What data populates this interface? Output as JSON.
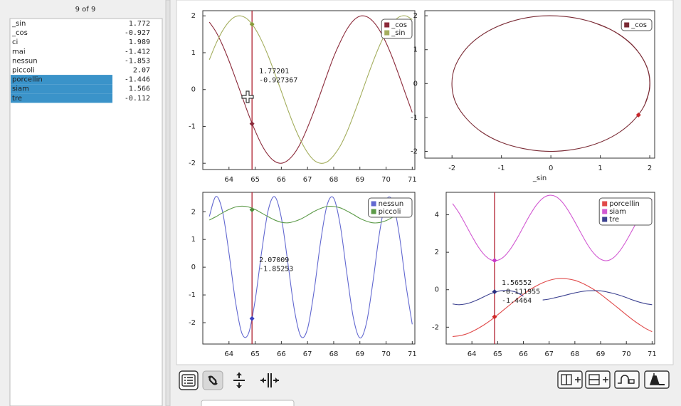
{
  "variable_list": {
    "header": "9 of 9",
    "rows": [
      {
        "name": "_sin",
        "value": "1.772",
        "selected": false
      },
      {
        "name": "_cos",
        "value": "-0.927",
        "selected": false
      },
      {
        "name": "ci",
        "value": "1.989",
        "selected": false
      },
      {
        "name": "mai",
        "value": "-1.412",
        "selected": false
      },
      {
        "name": "nessun",
        "value": "-1.853",
        "selected": false
      },
      {
        "name": "piccoli",
        "value": "2.07",
        "selected": false
      },
      {
        "name": "porcellin",
        "value": "-1.446",
        "selected": true
      },
      {
        "name": "siam",
        "value": "1.566",
        "selected": true
      },
      {
        "name": "tre",
        "value": "-0.112",
        "selected": true
      }
    ]
  },
  "chart_data": [
    {
      "type": "line",
      "x": [
        63.25,
        63.5,
        63.75,
        64,
        64.25,
        64.5,
        64.75,
        65,
        65.25,
        65.5,
        65.75,
        66,
        66.25,
        66.5,
        66.75,
        67,
        67.25,
        67.5,
        67.75,
        68,
        68.25,
        68.5,
        68.75,
        69,
        69.25,
        69.5,
        69.75,
        70,
        70.25,
        70.5,
        70.75,
        71
      ],
      "series": [
        {
          "name": "_cos",
          "color": "#8b2a3a",
          "values": [
            1.83,
            1.57,
            1.21,
            0.78,
            0.3,
            -0.19,
            -0.68,
            -1.12,
            -1.5,
            -1.78,
            -1.95,
            -2.0,
            -1.92,
            -1.73,
            -1.43,
            -1.03,
            -0.58,
            -0.09,
            0.41,
            0.89,
            1.29,
            1.63,
            1.87,
            1.99,
            1.98,
            1.85,
            1.61,
            1.27,
            0.85,
            0.37,
            -0.13,
            -0.62
          ]
        },
        {
          "name": "_sin",
          "color": "#a4ae5e",
          "values": [
            0.81,
            1.24,
            1.59,
            1.84,
            1.98,
            1.99,
            1.88,
            1.65,
            1.32,
            0.91,
            0.44,
            -0.05,
            -0.55,
            -1.01,
            -1.4,
            -1.71,
            -1.92,
            -2.0,
            -1.96,
            -1.79,
            -1.53,
            -1.16,
            -0.71,
            -0.23,
            0.27,
            0.75,
            1.19,
            1.55,
            1.81,
            1.97,
            2.0,
            1.9
          ]
        }
      ],
      "xlim": [
        63,
        71.1
      ],
      "ylim": [
        -2.17,
        2.14
      ],
      "xticks": [
        64,
        65,
        66,
        67,
        68,
        69,
        70,
        71
      ],
      "yticks": [
        -2,
        -1,
        0,
        1,
        2
      ],
      "cursor": {
        "x": 64.88,
        "values": [
          1.77201,
          -0.927367
        ],
        "colors": [
          "#8a9a3a",
          "#8b2a3a"
        ]
      }
    },
    {
      "type": "line",
      "x": [
        0.81,
        1.24,
        1.59,
        1.84,
        1.98,
        1.99,
        1.88,
        1.65,
        1.32,
        0.91,
        0.44,
        -0.05,
        -0.55,
        -1.01,
        -1.4,
        -1.71,
        -1.92,
        -2.0,
        -1.96,
        -1.79,
        -1.53,
        -1.16,
        -0.71,
        -0.23,
        0.27,
        0.75,
        1.19,
        1.55,
        1.81,
        1.97,
        2.0,
        1.9
      ],
      "series": [
        {
          "name": "_cos",
          "color": "#7a2a34",
          "values": [
            1.83,
            1.57,
            1.21,
            0.78,
            0.3,
            -0.19,
            -0.68,
            -1.12,
            -1.5,
            -1.78,
            -1.95,
            -2.0,
            -1.92,
            -1.73,
            -1.43,
            -1.03,
            -0.58,
            -0.09,
            0.41,
            0.89,
            1.29,
            1.63,
            1.87,
            1.99,
            1.98,
            1.85,
            1.61,
            1.27,
            0.85,
            0.37,
            -0.13,
            -0.62
          ]
        }
      ],
      "xlabel": "_sin",
      "xlim": [
        -2.55,
        2.1
      ],
      "ylim": [
        -2.2,
        2.15
      ],
      "xticks": [
        -2,
        -1,
        0,
        1,
        2
      ],
      "yticks": [
        -2,
        -1,
        0,
        1,
        2
      ],
      "marker": {
        "x": 1.772,
        "y": -0.927,
        "color": "#c8282d"
      }
    },
    {
      "type": "line",
      "x": [
        63.25,
        63.5,
        63.75,
        64,
        64.25,
        64.5,
        64.75,
        65,
        65.25,
        65.5,
        65.75,
        66,
        66.25,
        66.5,
        66.75,
        67,
        67.25,
        67.5,
        67.75,
        68,
        68.25,
        68.5,
        68.75,
        69,
        69.25,
        69.5,
        69.75,
        70,
        70.25,
        70.5,
        70.75,
        71
      ],
      "series": [
        {
          "name": "nessun",
          "color": "#6268d0",
          "values": [
            1.83,
            2.55,
            2.02,
            0.51,
            -1.25,
            -2.4,
            -2.38,
            -1.19,
            0.57,
            2.06,
            2.54,
            1.78,
            0.15,
            -1.55,
            -2.5,
            -2.22,
            -0.86,
            0.92,
            2.25,
            2.49,
            1.51,
            -0.21,
            -1.82,
            -2.55,
            -2.02,
            -0.52,
            1.24,
            2.4,
            2.38,
            1.2,
            -0.57,
            -2.06
          ]
        },
        {
          "name": "piccoli",
          "color": "#5c9a48",
          "values": [
            1.7,
            1.82,
            1.96,
            2.08,
            2.17,
            2.2,
            2.17,
            2.08,
            1.95,
            1.82,
            1.7,
            1.62,
            1.6,
            1.65,
            1.74,
            1.87,
            2.01,
            2.12,
            2.19,
            2.19,
            2.14,
            2.03,
            1.9,
            1.76,
            1.66,
            1.6,
            1.61,
            1.68,
            1.8,
            1.93,
            2.06,
            2.16
          ]
        }
      ],
      "xlim": [
        63,
        71.1
      ],
      "ylim": [
        -2.77,
        2.7
      ],
      "xticks": [
        64,
        65,
        66,
        67,
        68,
        69,
        70,
        71
      ],
      "yticks": [
        -2,
        -1,
        0,
        1,
        2
      ],
      "cursor": {
        "x": 64.88,
        "values": [
          2.07009,
          -1.85253
        ],
        "colors": [
          "#4e8a3a",
          "#3a3fc0"
        ]
      }
    },
    {
      "type": "line",
      "x": [
        63.25,
        63.5,
        63.75,
        64,
        64.25,
        64.5,
        64.75,
        65,
        65.25,
        65.5,
        65.75,
        66,
        66.25,
        66.5,
        66.75,
        67,
        67.25,
        67.5,
        67.75,
        68,
        68.25,
        68.5,
        68.75,
        69,
        69.25,
        69.5,
        69.75,
        70,
        70.25,
        70.5,
        70.75,
        71
      ],
      "series": [
        {
          "name": "porcellin",
          "color": "#e04a4a",
          "values": [
            -2.5,
            -2.46,
            -2.38,
            -2.24,
            -2.06,
            -1.85,
            -1.61,
            -1.34,
            -1.06,
            -0.78,
            -0.5,
            -0.24,
            0.0,
            0.2,
            0.37,
            0.5,
            0.58,
            0.6,
            0.57,
            0.5,
            0.37,
            0.2,
            0.0,
            -0.24,
            -0.51,
            -0.78,
            -1.06,
            -1.34,
            -1.61,
            -1.85,
            -2.07,
            -2.24
          ]
        },
        {
          "name": "siam",
          "color": "#d25ad2",
          "values": [
            4.6,
            4.1,
            3.49,
            2.86,
            2.28,
            1.84,
            1.59,
            1.57,
            1.77,
            2.18,
            2.73,
            3.36,
            3.98,
            4.51,
            4.88,
            5.04,
            4.98,
            4.69,
            4.21,
            3.62,
            2.99,
            2.39,
            1.92,
            1.63,
            1.55,
            1.71,
            2.08,
            2.61,
            3.23,
            3.86,
            4.41,
            4.82
          ]
        },
        {
          "name": "tre",
          "color": "#3c4190",
          "values": [
            -0.76,
            -0.8,
            -0.76,
            -0.66,
            -0.52,
            -0.35,
            -0.2,
            -0.09,
            -0.04,
            -0.06,
            -0.15,
            -0.35,
            null,
            null,
            -0.55,
            -0.5,
            -0.42,
            -0.34,
            -0.25,
            -0.17,
            -0.1,
            -0.06,
            -0.05,
            -0.06,
            -0.12,
            -0.2,
            -0.3,
            -0.42,
            -0.55,
            -0.66,
            -0.75,
            -0.8
          ]
        }
      ],
      "xlim": [
        63,
        71.1
      ],
      "ylim": [
        -2.9,
        5.2
      ],
      "xticks": [
        64,
        65,
        66,
        67,
        68,
        69,
        70,
        71
      ],
      "yticks": [
        -2,
        0,
        2,
        4
      ],
      "cursor": {
        "x": 64.88,
        "values": [
          1.56552,
          -0.111955,
          -1.4464
        ],
        "colors": [
          "#c83ac8",
          "#2a2f80",
          "#d02a2a"
        ]
      }
    }
  ]
}
